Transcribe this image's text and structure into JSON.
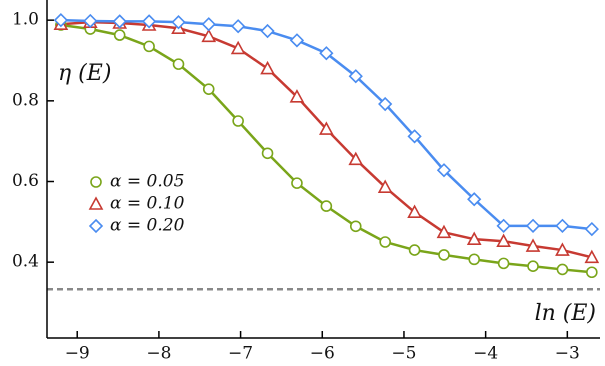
{
  "chart_data": {
    "type": "line",
    "y_label": "η (E)",
    "x_label": "ln (E)",
    "x": [
      -9.2,
      -8.84,
      -8.48,
      -8.12,
      -7.76,
      -7.39,
      -7.03,
      -6.67,
      -6.31,
      -5.95,
      -5.59,
      -5.23,
      -4.87,
      -4.51,
      -4.14,
      -3.78,
      -3.42,
      -3.06,
      -2.7
    ],
    "series": [
      {
        "name": "α = 0.05",
        "color": "#7aa51a",
        "marker": "circle",
        "values": [
          0.988,
          0.978,
          0.963,
          0.935,
          0.891,
          0.829,
          0.75,
          0.67,
          0.596,
          0.539,
          0.489,
          0.45,
          0.43,
          0.418,
          0.407,
          0.397,
          0.39,
          0.382,
          0.375
        ]
      },
      {
        "name": "α = 0.10",
        "color": "#c73a32",
        "marker": "triangle",
        "values": [
          0.99,
          0.995,
          0.993,
          0.988,
          0.98,
          0.96,
          0.93,
          0.88,
          0.81,
          0.73,
          0.655,
          0.586,
          0.524,
          0.474,
          0.457,
          0.452,
          0.44,
          0.43,
          0.412
        ]
      },
      {
        "name": "α = 0.20",
        "color": "#4a8cf0",
        "marker": "diamond",
        "values": [
          1.0,
          0.998,
          0.997,
          0.997,
          0.995,
          0.99,
          0.985,
          0.973,
          0.95,
          0.918,
          0.861,
          0.792,
          0.712,
          0.628,
          0.556,
          0.49,
          0.49,
          0.49,
          0.482
        ]
      }
    ],
    "hline": 0.333,
    "xlim": [
      -9.37,
      -2.6
    ],
    "ylim": [
      0.212,
      1.05
    ],
    "xticks": [
      -9,
      -8,
      -7,
      -6,
      -5,
      -4,
      -3
    ],
    "yticks": [
      0.4,
      0.6,
      0.8,
      {
        "value": 1,
        "label": "1.0"
      }
    ]
  }
}
